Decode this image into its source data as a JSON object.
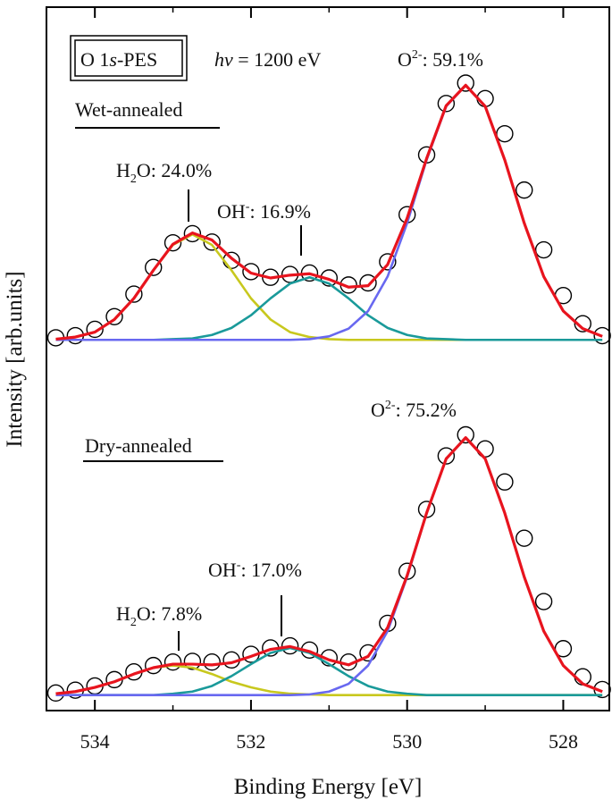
{
  "chart_data": {
    "type": "line",
    "xlabel": "Binding Energy [eV]",
    "ylabel": "Intensity [arb.units]",
    "xlim": [
      534.62,
      527.41
    ],
    "xticks": [
      534,
      532,
      530,
      528
    ],
    "xticks_minor": [
      533,
      531,
      529
    ],
    "ylim": [
      0,
      100
    ],
    "x": [
      534.5,
      534.25,
      534.0,
      533.75,
      533.5,
      533.25,
      533.0,
      532.75,
      532.5,
      532.25,
      532.0,
      531.75,
      531.5,
      531.25,
      531.0,
      530.75,
      530.5,
      530.25,
      530.0,
      529.75,
      529.5,
      529.25,
      529.0,
      528.75,
      528.5,
      528.25,
      528.0,
      527.75,
      527.5
    ],
    "series": [
      {
        "color": "#c8c81e",
        "style": "line",
        "values": [
          52.8,
          53.1,
          53.8,
          55.6,
          58.6,
          62.6,
          66.2,
          67.7,
          66.2,
          62.6,
          58.6,
          55.6,
          53.8,
          53.1,
          52.8,
          52.7,
          52.7,
          52.7,
          52.7,
          52.7,
          52.7,
          52.7,
          52.7,
          52.7,
          52.7,
          52.7,
          52.7,
          52.7,
          52.7
        ]
      },
      {
        "color": "#1a9a9a",
        "style": "line",
        "values": [
          52.7,
          52.7,
          52.7,
          52.7,
          52.7,
          52.7,
          52.8,
          52.9,
          53.4,
          54.4,
          56.2,
          58.6,
          60.7,
          61.6,
          60.7,
          58.6,
          56.2,
          54.4,
          53.4,
          52.9,
          52.8,
          52.7,
          52.7,
          52.7,
          52.7,
          52.7,
          52.7,
          52.7,
          52.7
        ]
      },
      {
        "color": "#6868f0",
        "style": "line",
        "values": [
          52.7,
          52.7,
          52.7,
          52.7,
          52.7,
          52.7,
          52.7,
          52.7,
          52.7,
          52.7,
          52.7,
          52.7,
          52.7,
          52.8,
          53.2,
          54.3,
          56.8,
          61.7,
          69.3,
          78.3,
          85.9,
          88.9,
          85.9,
          78.3,
          69.3,
          61.7,
          56.8,
          54.3,
          53.2
        ]
      },
      {
        "color": "#000000",
        "style": "circle",
        "values": [
          53.0,
          53.3,
          54.2,
          56.0,
          59.2,
          63.0,
          66.5,
          67.8,
          66.6,
          64.0,
          62.4,
          61.6,
          62.0,
          62.2,
          61.5,
          60.5,
          60.8,
          63.8,
          70.5,
          79.0,
          86.3,
          89.2,
          87.0,
          82.0,
          74.0,
          65.5,
          59.0,
          55.0,
          53.3
        ]
      },
      {
        "color": "#e8141e",
        "style": "line",
        "values": [
          52.8,
          53.1,
          53.8,
          55.6,
          58.6,
          62.6,
          66.3,
          67.9,
          66.9,
          64.3,
          62.2,
          61.5,
          61.9,
          62.1,
          61.3,
          60.2,
          60.4,
          63.4,
          70.0,
          78.5,
          86.0,
          88.9,
          85.9,
          78.3,
          69.3,
          61.7,
          56.8,
          54.3,
          53.2
        ]
      },
      {
        "color": "#c8c81e",
        "style": "line",
        "values": [
          2.4,
          2.7,
          3.3,
          4.1,
          5.2,
          6.1,
          6.4,
          6.1,
          5.2,
          4.1,
          3.3,
          2.7,
          2.4,
          2.3,
          2.2,
          2.2,
          2.2,
          2.2,
          2.2,
          2.2,
          2.2,
          2.2,
          2.2,
          2.2,
          2.2,
          2.2,
          2.2,
          2.2,
          2.2
        ]
      },
      {
        "color": "#1a9a9a",
        "style": "line",
        "values": [
          2.2,
          2.2,
          2.2,
          2.2,
          2.2,
          2.2,
          2.4,
          2.7,
          3.5,
          4.9,
          6.6,
          8.2,
          8.9,
          8.2,
          6.6,
          4.9,
          3.5,
          2.7,
          2.4,
          2.2,
          2.2,
          2.2,
          2.2,
          2.2,
          2.2,
          2.2,
          2.2,
          2.2,
          2.2
        ]
      },
      {
        "color": "#6868f0",
        "style": "line",
        "values": [
          2.2,
          2.2,
          2.2,
          2.2,
          2.2,
          2.2,
          2.2,
          2.2,
          2.2,
          2.2,
          2.2,
          2.2,
          2.2,
          2.3,
          2.7,
          3.8,
          6.4,
          11.3,
          19.0,
          28.1,
          35.8,
          38.8,
          35.8,
          28.1,
          19.0,
          11.3,
          6.4,
          3.8,
          2.7
        ]
      },
      {
        "color": "#000000",
        "style": "circle",
        "values": [
          2.5,
          2.9,
          3.5,
          4.4,
          5.5,
          6.4,
          6.9,
          7.0,
          6.9,
          7.2,
          8.0,
          8.9,
          9.2,
          8.6,
          7.5,
          6.9,
          8.2,
          12.4,
          19.8,
          28.6,
          36.2,
          39.2,
          37.2,
          32.5,
          24.5,
          15.5,
          8.8,
          4.8,
          3.0
        ]
      },
      {
        "color": "#e8141e",
        "style": "line",
        "values": [
          2.4,
          2.7,
          3.3,
          4.1,
          5.2,
          6.1,
          6.6,
          6.6,
          6.5,
          6.8,
          7.7,
          8.7,
          9.1,
          8.4,
          7.2,
          6.5,
          7.7,
          11.8,
          19.2,
          28.1,
          35.8,
          38.8,
          35.8,
          28.1,
          19.0,
          11.3,
          6.4,
          3.8,
          2.7
        ]
      }
    ],
    "annotations": [
      {
        "segments": [
          {
            "text": "O 1"
          },
          {
            "text": "s",
            "style": "italic"
          },
          {
            "text": "-PES"
          }
        ]
      },
      {
        "segments": [
          {
            "text": "hν",
            "style": "italic"
          },
          {
            "text": " = 1200 eV"
          }
        ]
      },
      {
        "segments": [
          {
            "text": "O"
          },
          {
            "text": "2-",
            "style": "sup"
          },
          {
            "text": ": 59.1%"
          }
        ]
      },
      {
        "segments": [
          {
            "text": "Wet-annealed"
          }
        ]
      },
      {
        "segments": [
          {
            "text": "H"
          },
          {
            "text": "2",
            "style": "sub"
          },
          {
            "text": "O: 24.0%"
          }
        ]
      },
      {
        "segments": [
          {
            "text": "OH"
          },
          {
            "text": "-",
            "style": "sup"
          },
          {
            "text": ": 16.9%"
          }
        ]
      },
      {
        "segments": [
          {
            "text": "O"
          },
          {
            "text": "2-",
            "style": "sup"
          },
          {
            "text": ": 75.2%"
          }
        ]
      },
      {
        "segments": [
          {
            "text": "Dry-annealed"
          }
        ]
      },
      {
        "segments": [
          {
            "text": "H"
          },
          {
            "text": "2",
            "style": "sub"
          },
          {
            "text": "O: 7.8%"
          }
        ]
      },
      {
        "segments": [
          {
            "text": "OH"
          },
          {
            "text": "-",
            "style": "sup"
          },
          {
            "text": ": 17.0%"
          }
        ]
      }
    ]
  }
}
